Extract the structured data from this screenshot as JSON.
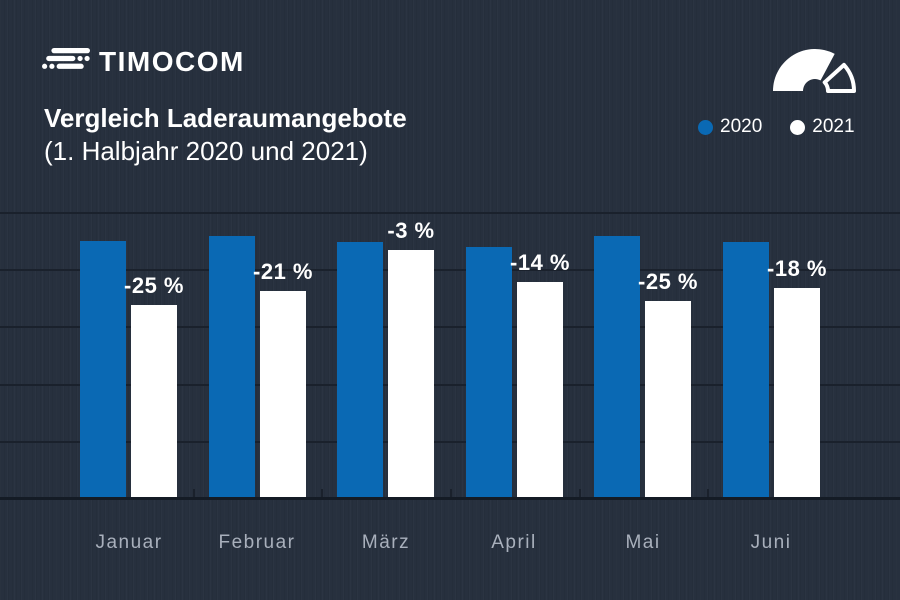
{
  "header": {
    "logo_text": "TIMOCOM",
    "title": "Vergleich Laderaumangebote",
    "subtitle": "(1. Halbjahr 2020 und 2021)",
    "legend": [
      {
        "label": "2020",
        "color": "#0a69b4"
      },
      {
        "label": "2021",
        "color": "#ffffff"
      }
    ]
  },
  "colors": {
    "background": "#27303e",
    "accent_blue": "#0a69b4",
    "bar_white": "#ffffff",
    "grid_line": "#1a212c",
    "axis_line": "#141b25",
    "axis_label": "#a9b0bc"
  },
  "icons": {
    "logo_mark": "timocom-road-icon",
    "gauge": "speedometer-icon"
  },
  "chart_data": {
    "type": "bar",
    "title": "Vergleich Laderaumangebote (1. Halbjahr 2020 und 2021)",
    "categories": [
      "Januar",
      "Februar",
      "März",
      "April",
      "Mai",
      "Juni"
    ],
    "series": [
      {
        "name": "2020",
        "color": "#0a69b4",
        "values": [
          256,
          261,
          255,
          250,
          261,
          255
        ]
      },
      {
        "name": "2021",
        "color": "#ffffff",
        "values": [
          192,
          206,
          247,
          215,
          196,
          209
        ]
      }
    ],
    "bar_labels": {
      "series": "2021",
      "values": [
        "-25 %",
        "-21 %",
        "-3 %",
        "-14 %",
        "-25 %",
        "-18 %"
      ],
      "meaning": "change of 2021 vs 2020 per month"
    },
    "xlabel": "",
    "ylabel": "",
    "value_unit": "relative bar height (no y-axis values shown)",
    "grid": true,
    "gridline_count": 5,
    "legend_position": "top-right"
  }
}
